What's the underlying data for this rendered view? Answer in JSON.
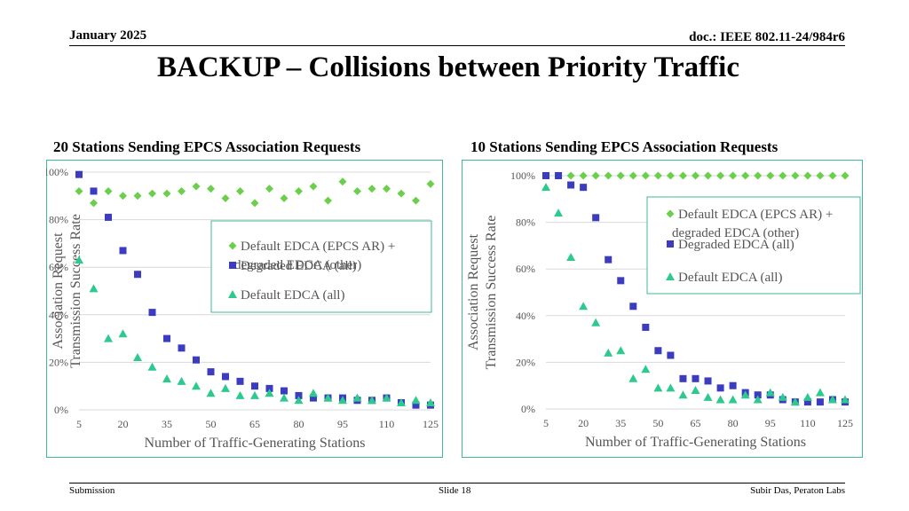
{
  "header": {
    "date": "January 2025",
    "doc": "doc.: IEEE 802.11-24/984r6"
  },
  "title": "BACKUP – Collisions between Priority Traffic",
  "footer": {
    "left": "Submission",
    "center": "Slide 18",
    "right": "Subir Das, Peraton Labs"
  },
  "colors": {
    "green": "#6ccf4c",
    "blue": "#3b3cbf",
    "teal": "#2ec98f",
    "border": "#3fb99a"
  },
  "chart_data": [
    {
      "type": "scatter",
      "title": "20 Stations Sending EPCS Association Requests",
      "xlabel": "Number of Traffic-Generating Stations",
      "ylabel": "Association Request Transmission Success Rate",
      "xticks": [
        "5",
        "20",
        "35",
        "50",
        "65",
        "80",
        "95",
        "110",
        "125"
      ],
      "yticks": [
        "0%",
        "20%",
        "40%",
        "60%",
        "80%",
        "100%"
      ],
      "xlim": [
        5,
        125
      ],
      "ylim": [
        0,
        100
      ],
      "grid": true,
      "legend_position": "center-right",
      "x": [
        5,
        10,
        15,
        20,
        25,
        30,
        35,
        40,
        45,
        50,
        55,
        60,
        65,
        70,
        75,
        80,
        85,
        90,
        95,
        100,
        105,
        110,
        115,
        120,
        125
      ],
      "series": [
        {
          "name": "Default EDCA (EPCS AR) + degraded EDCA (other)",
          "marker": "diamond",
          "color": "#6ccf4c",
          "values": [
            92,
            87,
            92,
            90,
            90,
            91,
            91,
            92,
            94,
            93,
            89,
            92,
            87,
            93,
            89,
            92,
            94,
            88,
            96,
            92,
            93,
            93,
            91,
            88,
            95
          ]
        },
        {
          "name": "Degraded EDCA (all)",
          "marker": "square",
          "color": "#3b3cbf",
          "values": [
            99,
            92,
            81,
            67,
            57,
            41,
            30,
            26,
            21,
            16,
            14,
            12,
            10,
            9,
            8,
            6,
            5,
            5,
            5,
            4,
            4,
            5,
            3,
            2,
            2
          ]
        },
        {
          "name": "Default EDCA (all)",
          "marker": "triangle",
          "color": "#2ec98f",
          "values": [
            63,
            51,
            30,
            32,
            22,
            18,
            13,
            12,
            10,
            7,
            9,
            6,
            6,
            7,
            5,
            4,
            7,
            5,
            4,
            5,
            4,
            5,
            3,
            4,
            3
          ]
        }
      ]
    },
    {
      "type": "scatter",
      "title": "10 Stations Sending EPCS Association Requests",
      "xlabel": "Number of Traffic-Generating Stations",
      "ylabel": "Association Request Transmission Success Rate",
      "xticks": [
        "5",
        "20",
        "35",
        "50",
        "65",
        "80",
        "95",
        "110",
        "125"
      ],
      "yticks": [
        "0%",
        "20%",
        "40%",
        "60%",
        "80%",
        "100%"
      ],
      "xlim": [
        5,
        125
      ],
      "ylim": [
        0,
        100
      ],
      "grid": true,
      "legend_position": "top-right",
      "x": [
        5,
        10,
        15,
        20,
        25,
        30,
        35,
        40,
        45,
        50,
        55,
        60,
        65,
        70,
        75,
        80,
        85,
        90,
        95,
        100,
        105,
        110,
        115,
        120,
        125
      ],
      "series": [
        {
          "name": "Default EDCA (EPCS AR) + degraded EDCA (other)",
          "marker": "diamond",
          "color": "#6ccf4c",
          "values": [
            100,
            100,
            100,
            100,
            100,
            100,
            100,
            100,
            100,
            100,
            100,
            100,
            100,
            100,
            100,
            100,
            100,
            100,
            100,
            100,
            100,
            100,
            100,
            100,
            100
          ]
        },
        {
          "name": "Degraded EDCA (all)",
          "marker": "square",
          "color": "#3b3cbf",
          "values": [
            100,
            100,
            96,
            95,
            82,
            64,
            55,
            44,
            35,
            25,
            23,
            13,
            13,
            12,
            9,
            10,
            7,
            6,
            6,
            4,
            3,
            3,
            3,
            4,
            3
          ]
        },
        {
          "name": "Default EDCA (all)",
          "marker": "triangle",
          "color": "#2ec98f",
          "values": [
            95,
            84,
            65,
            44,
            37,
            24,
            25,
            13,
            17,
            9,
            9,
            6,
            8,
            5,
            4,
            4,
            6,
            4,
            7,
            5,
            3,
            5,
            7,
            4,
            4
          ]
        }
      ]
    }
  ]
}
